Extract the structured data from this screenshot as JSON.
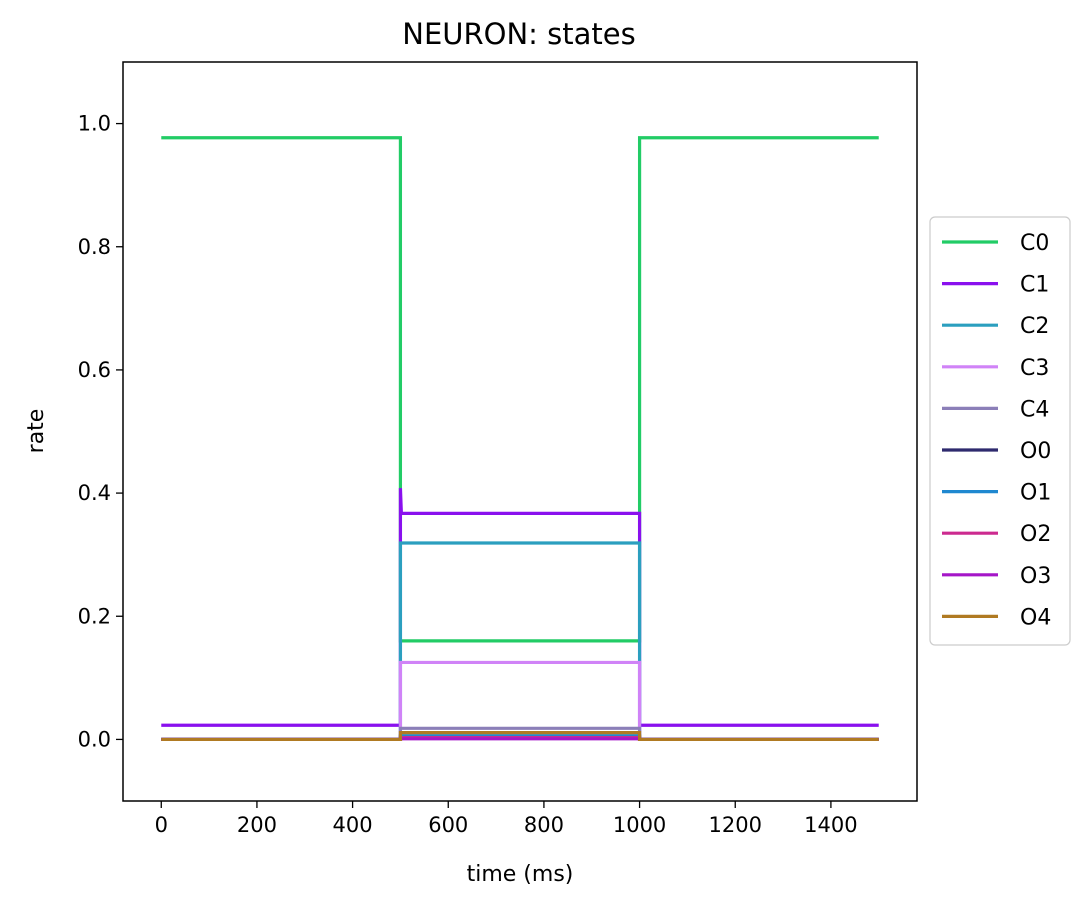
{
  "chart_data": {
    "type": "line",
    "title": "NEURON: states",
    "xlabel": "time (ms)",
    "ylabel": "rate",
    "xlim": [
      -80,
      1580
    ],
    "ylim": [
      -0.1,
      1.1
    ],
    "xticks": [
      0,
      200,
      400,
      600,
      800,
      1000,
      1200,
      1400
    ],
    "yticks": [
      0.0,
      0.2,
      0.4,
      0.6,
      0.8,
      1.0
    ],
    "ytick_labels": [
      "0.0",
      "0.2",
      "0.4",
      "0.6",
      "0.8",
      "1.0"
    ],
    "grid": false,
    "legend_position": "center-right-outside",
    "series": [
      {
        "name": "C0",
        "color": "#22cc66",
        "x": [
          0,
          500,
          500,
          1000,
          1000,
          1500
        ],
        "y": [
          0.977,
          0.977,
          0.16,
          0.16,
          0.977,
          0.977
        ]
      },
      {
        "name": "C1",
        "color": "#8a10ee",
        "x": [
          0,
          500,
          500,
          502,
          1000,
          1000,
          1500
        ],
        "y": [
          0.023,
          0.023,
          0.408,
          0.367,
          0.367,
          0.023,
          0.023
        ]
      },
      {
        "name": "C2",
        "color": "#2b9fbf",
        "x": [
          0,
          500,
          500,
          1000,
          1000,
          1500
        ],
        "y": [
          0.0005,
          0.0005,
          0.319,
          0.319,
          0.0005,
          0.0005
        ]
      },
      {
        "name": "C3",
        "color": "#d083f7",
        "x": [
          0,
          500,
          500,
          1000,
          1000,
          1500
        ],
        "y": [
          0.0,
          0.0,
          0.125,
          0.125,
          0.0,
          0.0
        ]
      },
      {
        "name": "C4",
        "color": "#8b7fb8",
        "x": [
          0,
          500,
          500,
          1000,
          1000,
          1500
        ],
        "y": [
          0.0,
          0.0,
          0.018,
          0.018,
          0.0,
          0.0
        ]
      },
      {
        "name": "O0",
        "color": "#2e2a6e",
        "x": [
          0,
          500,
          500,
          1000,
          1000,
          1500
        ],
        "y": [
          0.0,
          0.0,
          0.004,
          0.004,
          0.0,
          0.0
        ]
      },
      {
        "name": "O1",
        "color": "#1f88d0",
        "x": [
          0,
          500,
          500,
          1000,
          1000,
          1500
        ],
        "y": [
          0.0,
          0.0,
          0.006,
          0.006,
          0.0,
          0.0
        ]
      },
      {
        "name": "O2",
        "color": "#cc2a8f",
        "x": [
          0,
          500,
          500,
          1000,
          1000,
          1500
        ],
        "y": [
          0.0,
          0.0,
          0.003,
          0.003,
          0.0,
          0.0
        ]
      },
      {
        "name": "O3",
        "color": "#a516c8",
        "x": [
          0,
          500,
          500,
          1000,
          1000,
          1500
        ],
        "y": [
          0.0,
          0.0,
          0.001,
          0.001,
          0.0,
          0.0
        ]
      },
      {
        "name": "O4",
        "color": "#b07a22",
        "x": [
          0,
          500,
          500,
          1000,
          1000,
          1500
        ],
        "y": [
          0.0,
          0.0,
          0.011,
          0.011,
          0.0,
          0.0
        ]
      }
    ]
  }
}
